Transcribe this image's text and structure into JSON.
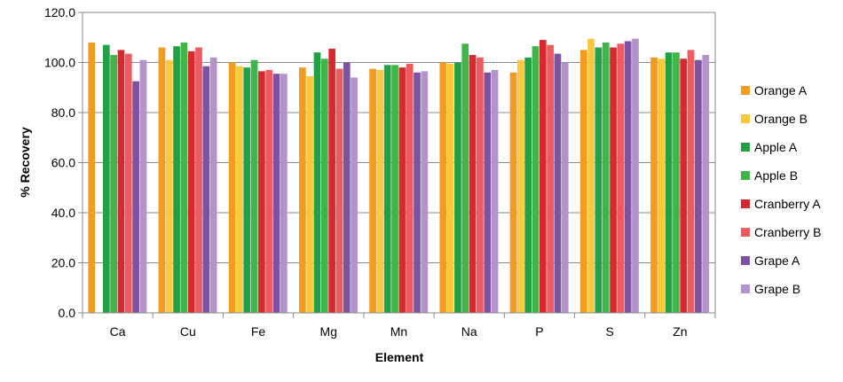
{
  "chart_data": {
    "type": "bar",
    "title": "",
    "xlabel": "Element",
    "ylabel": "% Recovery",
    "ylim": [
      0,
      120
    ],
    "yticks": [
      "0.0",
      "20.0",
      "40.0",
      "60.0",
      "80.0",
      "100.0",
      "120.0"
    ],
    "grid": "horizontal",
    "legend_position": "right",
    "categories": [
      "Ca",
      "Cu",
      "Fe",
      "Mg",
      "Mn",
      "Na",
      "P",
      "S",
      "Zn"
    ],
    "series": [
      {
        "name": "Orange A",
        "color": "#f39c1f",
        "values": [
          108.0,
          106.0,
          100.0,
          98.0,
          97.5,
          100.0,
          96.0,
          105.0,
          102.0
        ]
      },
      {
        "name": "Orange B",
        "color": "#fdc93a",
        "values": [
          null,
          101.0,
          98.5,
          94.5,
          97.0,
          99.5,
          101.0,
          109.5,
          101.5
        ]
      },
      {
        "name": "Apple A",
        "color": "#21a046",
        "values": [
          107.0,
          106.5,
          98.0,
          104.0,
          99.0,
          100.0,
          102.0,
          106.0,
          104.0
        ]
      },
      {
        "name": "Apple B",
        "color": "#3fb54a",
        "values": [
          103.0,
          108.0,
          101.0,
          101.5,
          99.0,
          107.5,
          106.5,
          108.0,
          104.0
        ]
      },
      {
        "name": "Cranberry A",
        "color": "#d72a2f",
        "values": [
          105.0,
          104.5,
          96.5,
          105.5,
          98.0,
          103.0,
          109.0,
          106.0,
          101.5
        ]
      },
      {
        "name": "Cranberry B",
        "color": "#f05a5e",
        "values": [
          103.5,
          106.0,
          97.0,
          97.5,
          99.5,
          102.0,
          107.0,
          107.5,
          105.0
        ]
      },
      {
        "name": "Grape A",
        "color": "#7d52a3",
        "values": [
          92.5,
          98.5,
          95.5,
          100.0,
          96.0,
          96.0,
          103.5,
          108.5,
          101.0
        ]
      },
      {
        "name": "Grape B",
        "color": "#b294ca",
        "values": [
          101.0,
          102.0,
          95.5,
          94.0,
          96.5,
          97.0,
          100.0,
          109.5,
          103.0
        ]
      }
    ]
  }
}
